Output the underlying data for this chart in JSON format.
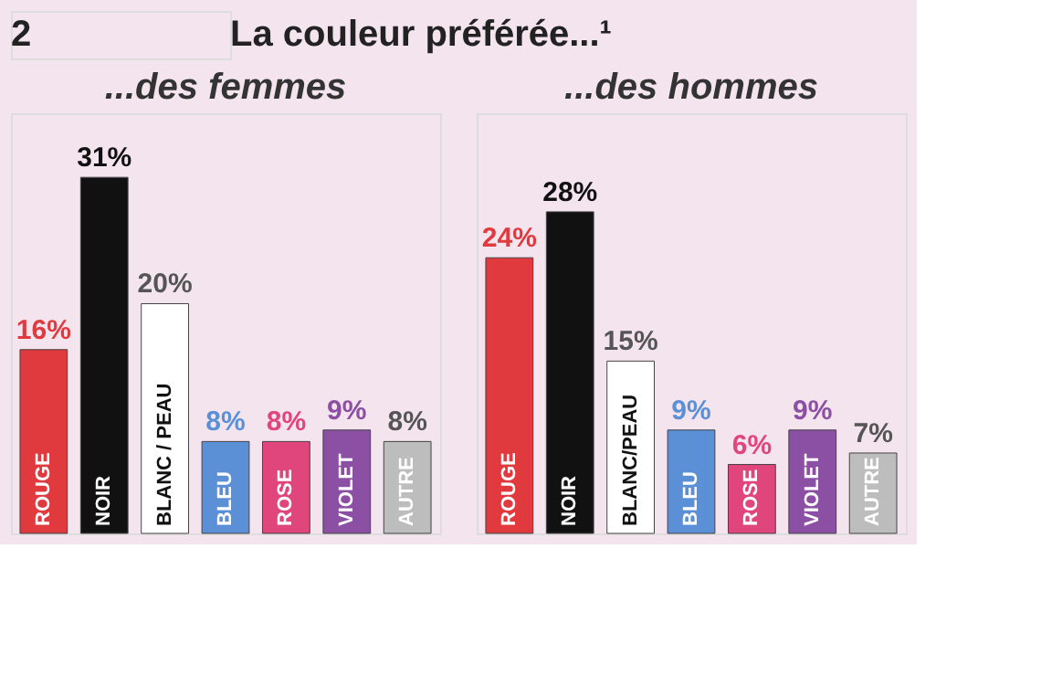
{
  "chart_data": [
    {
      "type": "bar",
      "title": "...des femmes",
      "annotations": [
        "2",
        "La couleur préférée...¹"
      ],
      "categories": [
        "ROUGE",
        "NOIR",
        "BLANC / PEAU",
        "BLEU",
        "ROSE",
        "VIOLET",
        "AUTRE"
      ],
      "values": [
        16,
        31,
        20,
        8,
        8,
        9,
        8
      ],
      "colors": [
        "#e03a3e",
        "#111111",
        "#ffffff",
        "#5b8fd6",
        "#e0457b",
        "#8b4fa3",
        "#bdbdbd"
      ],
      "value_labels": [
        "16%",
        "31%",
        "20%",
        "8%",
        "8%",
        "9%",
        "8%"
      ]
    },
    {
      "type": "bar",
      "title": "...des hommes",
      "categories": [
        "ROUGE",
        "NOIR",
        "BLANC/PEAU",
        "BLEU",
        "ROSE",
        "VIOLET",
        "AUTRE"
      ],
      "values": [
        24,
        28,
        15,
        9,
        6,
        9,
        7
      ],
      "colors": [
        "#e03a3e",
        "#111111",
        "#ffffff",
        "#5b8fd6",
        "#e0457b",
        "#8b4fa3",
        "#bdbdbd"
      ],
      "value_labels": [
        "24%",
        "28%",
        "15%",
        "9%",
        "6%",
        "9%",
        "7%"
      ]
    }
  ]
}
